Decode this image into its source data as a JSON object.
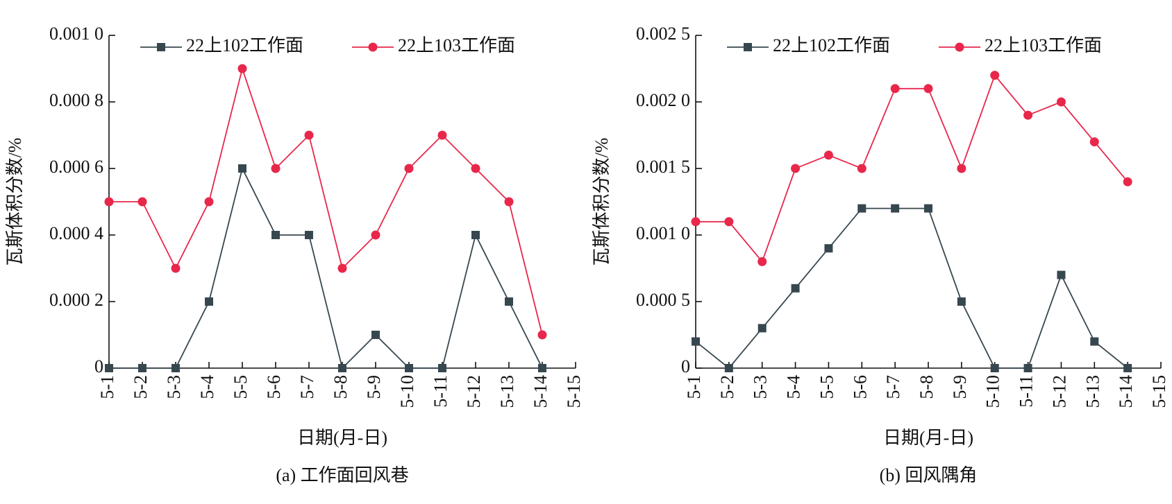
{
  "chart_data": [
    {
      "type": "line",
      "caption": "(a) 工作面回风巷",
      "x_label": "日期(月-日)",
      "y_label": "瓦斯体积分数/%",
      "categories": [
        "5-1",
        "5-2",
        "5-3",
        "5-4",
        "5-5",
        "5-6",
        "5-7",
        "5-8",
        "5-9",
        "5-10",
        "5-11",
        "5-12",
        "5-13",
        "5-14",
        "5-15"
      ],
      "ylim": [
        0,
        0.001
      ],
      "yticks": [
        0,
        {
          "value": 0.0002,
          "label": "0.000 2"
        },
        {
          "value": 0.0004,
          "label": "0.000 4"
        },
        {
          "value": 0.0006,
          "label": "0.000 6"
        },
        {
          "value": 0.0008,
          "label": "0.000 8"
        },
        {
          "value": 0.001,
          "label": "0.001 0"
        }
      ],
      "legend": "top",
      "series": [
        {
          "name": "22上102工作面",
          "color": "#37474f",
          "marker": "square",
          "values": [
            0,
            0,
            0,
            0.0002,
            0.0006,
            0.0004,
            0.0004,
            0,
            0.0001,
            0,
            0,
            0.0004,
            0.0002,
            0,
            null
          ]
        },
        {
          "name": "22上103工作面",
          "color": "#e8274b",
          "marker": "circle",
          "values": [
            0.0005,
            0.0005,
            0.0003,
            0.0005,
            0.0009,
            0.0006,
            0.0007,
            0.0003,
            0.0004,
            0.0006,
            0.0007,
            0.0006,
            0.0005,
            0.0001,
            null
          ]
        }
      ]
    },
    {
      "type": "line",
      "caption": "(b) 回风隅角",
      "x_label": "日期(月-日)",
      "y_label": "瓦斯体积分数/%",
      "categories": [
        "5-1",
        "5-2",
        "5-3",
        "5-4",
        "5-5",
        "5-6",
        "5-7",
        "5-8",
        "5-9",
        "5-10",
        "5-11",
        "5-12",
        "5-13",
        "5-14",
        "5-15"
      ],
      "ylim": [
        0,
        0.0025
      ],
      "yticks": [
        0,
        {
          "value": 0.0005,
          "label": "0.000 5"
        },
        {
          "value": 0.001,
          "label": "0.001 0"
        },
        {
          "value": 0.0015,
          "label": "0.001 5"
        },
        {
          "value": 0.002,
          "label": "0.002 0"
        },
        {
          "value": 0.0025,
          "label": "0.002 5"
        }
      ],
      "legend": "top",
      "series": [
        {
          "name": "22上102工作面",
          "color": "#37474f",
          "marker": "square",
          "values": [
            0.0002,
            0,
            0.0003,
            0.0006,
            0.0009,
            0.0012,
            0.0012,
            0.0012,
            0.0005,
            0,
            0,
            0.0007,
            0.0002,
            0,
            null
          ]
        },
        {
          "name": "22上103工作面",
          "color": "#e8274b",
          "marker": "circle",
          "values": [
            0.0011,
            0.0011,
            0.0008,
            0.0015,
            0.0016,
            0.0015,
            0.0021,
            0.0021,
            0.0015,
            0.0022,
            0.0019,
            0.002,
            0.0017,
            0.0014,
            null
          ]
        }
      ]
    }
  ]
}
